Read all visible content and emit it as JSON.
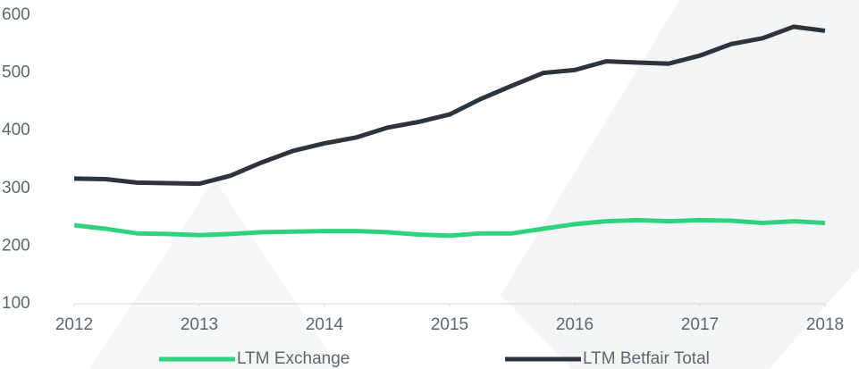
{
  "chart_data": {
    "type": "line",
    "x": [
      2012,
      2012.25,
      2012.5,
      2012.75,
      2013,
      2013.25,
      2013.5,
      2013.75,
      2014,
      2014.25,
      2014.5,
      2014.75,
      2015,
      2015.25,
      2015.5,
      2015.75,
      2016,
      2016.25,
      2016.5,
      2016.75,
      2017,
      2017.25,
      2017.5,
      2017.75,
      2018
    ],
    "series": [
      {
        "name": "LTM Exchange",
        "color": "#2fd27f",
        "values": [
          236,
          230,
          222,
          221,
          219,
          221,
          224,
          225,
          226,
          226,
          224,
          220,
          218,
          222,
          222,
          230,
          238,
          243,
          245,
          243,
          245,
          244,
          240,
          243,
          240
        ]
      },
      {
        "name": "LTM Betfair Total",
        "color": "#2c343d",
        "values": [
          317,
          316,
          310,
          309,
          308,
          322,
          345,
          365,
          378,
          388,
          405,
          415,
          428,
          455,
          478,
          500,
          505,
          520,
          518,
          516,
          530,
          550,
          560,
          580,
          573
        ]
      }
    ],
    "xlim": [
      2012,
      2018
    ],
    "xticks": [
      2012,
      2013,
      2014,
      2015,
      2016,
      2017,
      2018
    ],
    "ylim": [
      100,
      600
    ],
    "yticks": [
      100,
      200,
      300,
      400,
      500,
      600
    ],
    "legend": "bottom"
  }
}
